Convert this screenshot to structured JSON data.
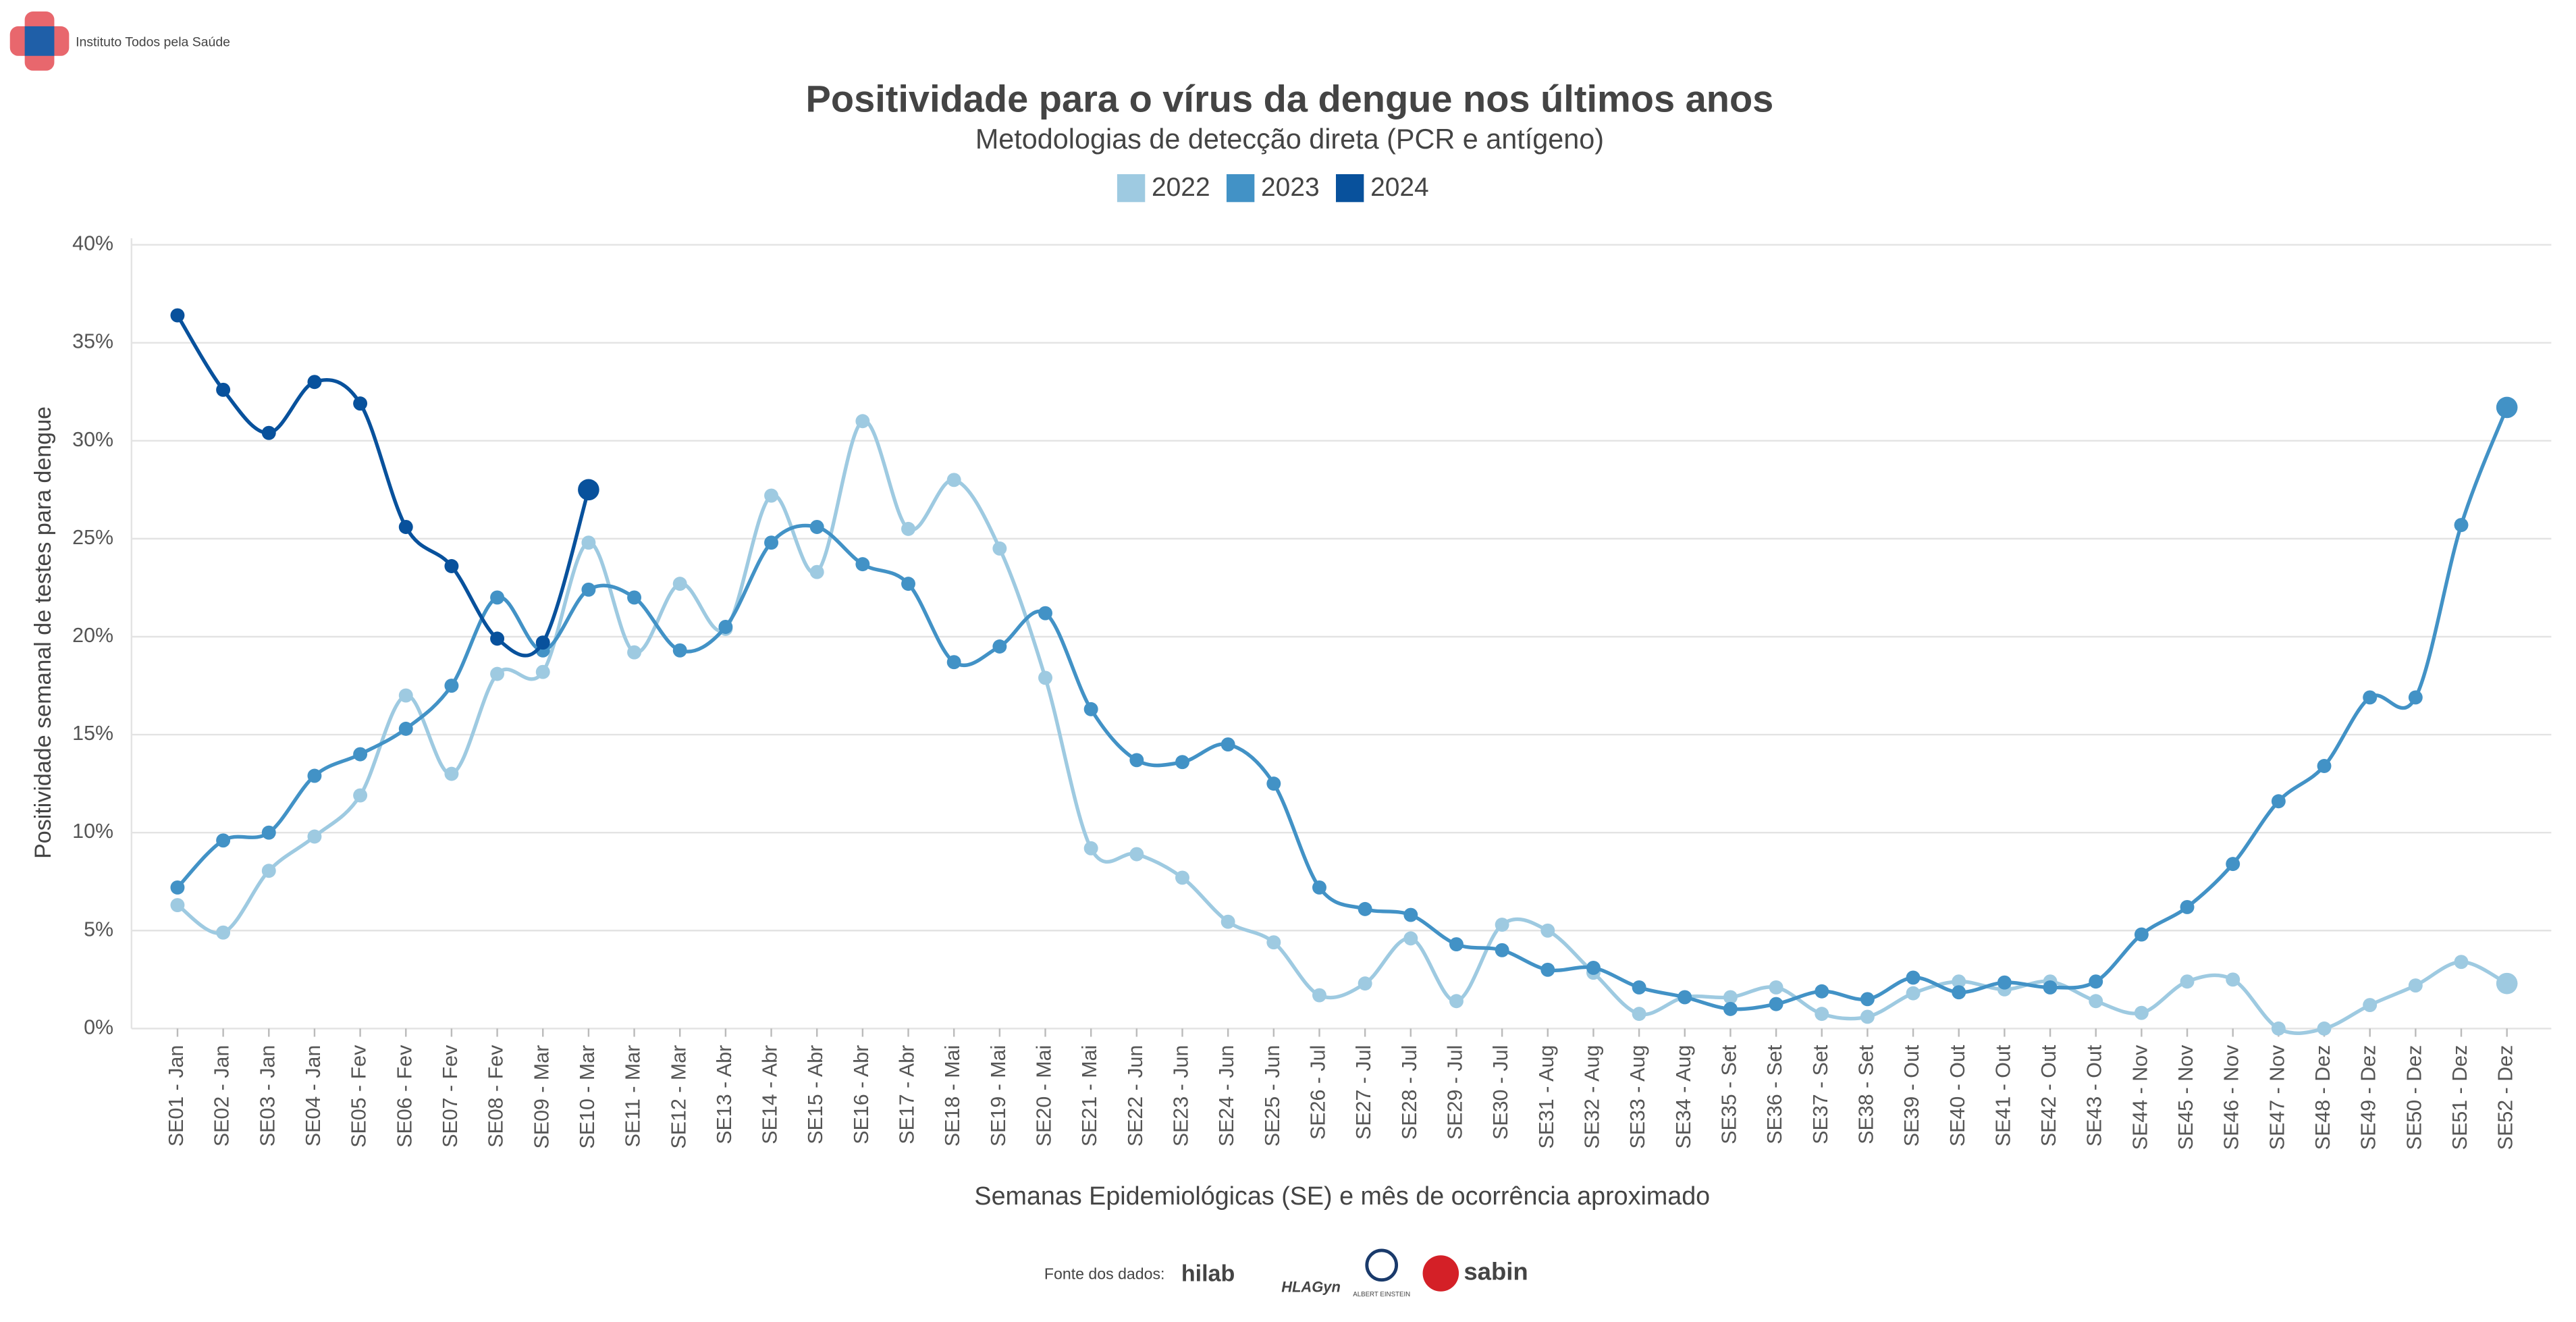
{
  "header": {
    "org_name": "Instituto Todos pela Saúde"
  },
  "chart_data": {
    "type": "line",
    "title": "Positividade para o vírus da dengue nos últimos anos",
    "subtitle": "Metodologias de detecção direta (PCR e antígeno)",
    "x_label": "Semanas Epidemiológicas (SE) e mês de ocorrência aproximado",
    "y_label": "Positividade semanal de testes para dengue",
    "categories": [
      "SE01 - Jan",
      "SE02 - Jan",
      "SE03 - Jan",
      "SE04 - Jan",
      "SE05 - Fev",
      "SE06 - Fev",
      "SE07 - Fev",
      "SE08 - Fev",
      "SE09 - Mar",
      "SE10 - Mar",
      "SE11 - Mar",
      "SE12 - Mar",
      "SE13 - Abr",
      "SE14 - Abr",
      "SE15 - Abr",
      "SE16 - Abr",
      "SE17 - Abr",
      "SE18 - Mai",
      "SE19 - Mai",
      "SE20 - Mai",
      "SE21 - Mai",
      "SE22 - Jun",
      "SE23 - Jun",
      "SE24 - Jun",
      "SE25 - Jun",
      "SE26 - Jul",
      "SE27 - Jul",
      "SE28 - Jul",
      "SE29 - Jul",
      "SE30 - Jul",
      "SE31 - Aug",
      "SE32 - Aug",
      "SE33 - Aug",
      "SE34 - Aug",
      "SE35 - Set",
      "SE36 - Set",
      "SE37 - Set",
      "SE38 - Set",
      "SE39 - Out",
      "SE40 - Out",
      "SE41 - Out",
      "SE42 - Out",
      "SE43 - Out",
      "SE44 - Nov",
      "SE45 - Nov",
      "SE46 - Nov",
      "SE47 - Nov",
      "SE48 - Dez",
      "SE49 - Dez",
      "SE50 - Dez",
      "SE51 - Dez",
      "SE52 - Dez"
    ],
    "series": [
      {
        "name": "2022",
        "color": "#9ecae1",
        "values": [
          6.3,
          4.9,
          8.05,
          9.8,
          11.9,
          17.0,
          13.0,
          18.1,
          18.2,
          24.8,
          19.2,
          22.7,
          20.4,
          27.2,
          23.3,
          31.0,
          25.5,
          28.0,
          24.5,
          17.9,
          9.2,
          8.9,
          7.7,
          5.45,
          4.4,
          1.7,
          2.3,
          4.6,
          1.4,
          5.3,
          5.0,
          2.85,
          0.75,
          1.6,
          1.6,
          2.1,
          0.75,
          0.6,
          1.8,
          2.4,
          2.0,
          2.4,
          1.4,
          0.8,
          2.4,
          2.5,
          0,
          0,
          1.2,
          2.2,
          3.4,
          2.3
        ]
      },
      {
        "name": "2023",
        "color": "#4292c6",
        "values": [
          7.2,
          9.6,
          10.0,
          12.9,
          14.0,
          15.3,
          17.5,
          22.0,
          19.3,
          22.4,
          22.0,
          19.3,
          20.5,
          24.8,
          25.6,
          23.7,
          22.7,
          18.7,
          19.5,
          21.2,
          16.3,
          13.7,
          13.6,
          14.5,
          12.5,
          7.2,
          6.1,
          5.8,
          4.3,
          4.0,
          3.0,
          3.1,
          2.1,
          1.6,
          1.0,
          1.25,
          1.9,
          1.5,
          2.6,
          1.85,
          2.35,
          2.1,
          2.4,
          4.8,
          6.2,
          8.4,
          11.6,
          13.4,
          16.9,
          16.9,
          25.7,
          31.7
        ]
      },
      {
        "name": "2024",
        "color": "#08519c",
        "values": [
          36.4,
          32.6,
          30.4,
          33.0,
          31.9,
          25.6,
          23.6,
          19.9,
          19.7,
          27.5,
          null,
          null,
          null,
          null,
          null,
          null,
          null,
          null,
          null,
          null,
          null,
          null,
          null,
          null,
          null,
          null,
          null,
          null,
          null,
          null,
          null,
          null,
          null,
          null,
          null,
          null,
          null,
          null,
          null,
          null,
          null,
          null,
          null,
          null,
          null,
          null,
          null,
          null,
          null,
          null,
          null,
          null
        ]
      }
    ],
    "ylim": [
      0,
      40
    ],
    "yticks": [
      {
        "value": 0,
        "label": "0%"
      },
      {
        "value": 5,
        "label": "5%"
      },
      {
        "value": 10,
        "label": "10%"
      },
      {
        "value": 15,
        "label": "15%"
      },
      {
        "value": 20,
        "label": "20%"
      },
      {
        "value": 25,
        "label": "25%"
      },
      {
        "value": 30,
        "label": "30%"
      },
      {
        "value": 35,
        "label": "35%"
      },
      {
        "value": 40,
        "label": "40%"
      }
    ],
    "grid": true,
    "legend": "top"
  },
  "footer": {
    "source_label": "Fonte dos dados:",
    "logos": [
      "hilab",
      "HLAGyn",
      "ALBERT EINSTEIN",
      "sabin"
    ]
  }
}
